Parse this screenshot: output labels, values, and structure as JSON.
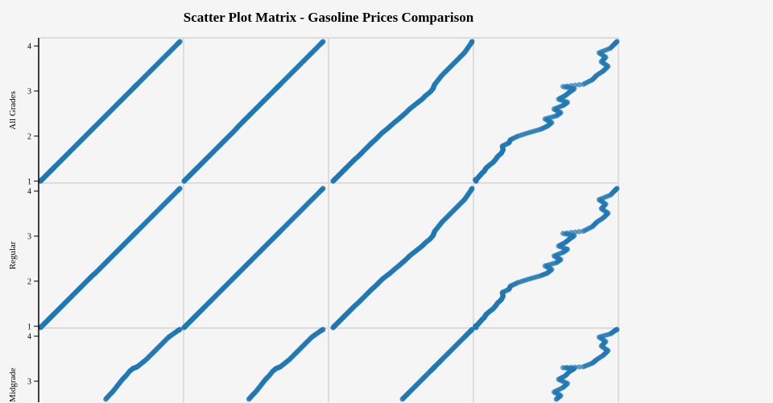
{
  "chart_data": {
    "type": "scatter",
    "title": "Scatter Plot Matrix - Gasoline Prices Comparison",
    "variables": [
      "All Grades",
      "Regular",
      "Midgrade",
      ""
    ],
    "rows": [
      0,
      1,
      2
    ],
    "cols": [
      0,
      1,
      2,
      3
    ],
    "yticks": [
      "1",
      "2",
      "3",
      "4"
    ],
    "domain": [
      0.96,
      4.18
    ],
    "grid": true,
    "color": "#1f77b4",
    "records": [
      [
        1.0,
        0.97,
        1.06,
        1.02
      ],
      [
        1.03,
        1.0,
        1.09,
        1.0
      ],
      [
        1.06,
        1.03,
        1.12,
        1.05
      ],
      [
        1.1,
        1.07,
        1.16,
        1.08
      ],
      [
        1.14,
        1.11,
        1.2,
        1.12
      ],
      [
        1.18,
        1.15,
        1.24,
        1.15
      ],
      [
        1.22,
        1.19,
        1.28,
        1.2
      ],
      [
        1.26,
        1.23,
        1.32,
        1.22
      ],
      [
        1.3,
        1.27,
        1.36,
        1.25
      ],
      [
        1.36,
        1.33,
        1.42,
        1.32
      ],
      [
        1.42,
        1.39,
        1.48,
        1.4
      ],
      [
        1.48,
        1.45,
        1.54,
        1.45
      ],
      [
        1.55,
        1.52,
        1.62,
        1.5
      ],
      [
        1.62,
        1.59,
        1.69,
        1.58
      ],
      [
        1.7,
        1.67,
        1.77,
        1.62
      ],
      [
        1.78,
        1.75,
        1.85,
        1.6
      ],
      [
        1.85,
        1.82,
        1.92,
        1.75
      ],
      [
        1.92,
        1.89,
        2.0,
        1.78
      ],
      [
        2.0,
        1.97,
        2.08,
        1.95
      ],
      [
        2.08,
        2.05,
        2.16,
        2.2
      ],
      [
        2.15,
        2.12,
        2.25,
        2.45
      ],
      [
        2.22,
        2.18,
        2.33,
        2.6
      ],
      [
        2.3,
        2.26,
        2.42,
        2.7
      ],
      [
        2.38,
        2.34,
        2.52,
        2.55
      ],
      [
        2.45,
        2.41,
        2.6,
        2.8
      ],
      [
        2.52,
        2.48,
        2.68,
        2.9
      ],
      [
        2.6,
        2.56,
        2.76,
        2.75
      ],
      [
        2.68,
        2.64,
        2.86,
        2.95
      ],
      [
        2.75,
        2.71,
        2.95,
        3.05
      ],
      [
        2.82,
        2.78,
        3.04,
        2.85
      ],
      [
        2.9,
        2.86,
        3.12,
        3.0
      ],
      [
        2.98,
        2.94,
        3.22,
        3.1
      ],
      [
        3.05,
        3.01,
        3.28,
        3.2
      ],
      [
        3.1,
        3.06,
        3.3,
        2.95
      ],
      [
        3.15,
        3.11,
        3.32,
        3.4
      ],
      [
        3.25,
        3.21,
        3.4,
        3.6
      ],
      [
        3.35,
        3.31,
        3.48,
        3.7
      ],
      [
        3.45,
        3.41,
        3.58,
        3.85
      ],
      [
        3.55,
        3.51,
        3.68,
        3.95
      ],
      [
        3.65,
        3.61,
        3.78,
        3.8
      ],
      [
        3.75,
        3.71,
        3.88,
        3.9
      ],
      [
        3.85,
        3.81,
        3.98,
        3.75
      ],
      [
        3.95,
        3.91,
        4.05,
        4.0
      ],
      [
        4.05,
        4.01,
        4.12,
        4.1
      ],
      [
        4.1,
        4.06,
        4.15,
        4.15
      ]
    ]
  }
}
